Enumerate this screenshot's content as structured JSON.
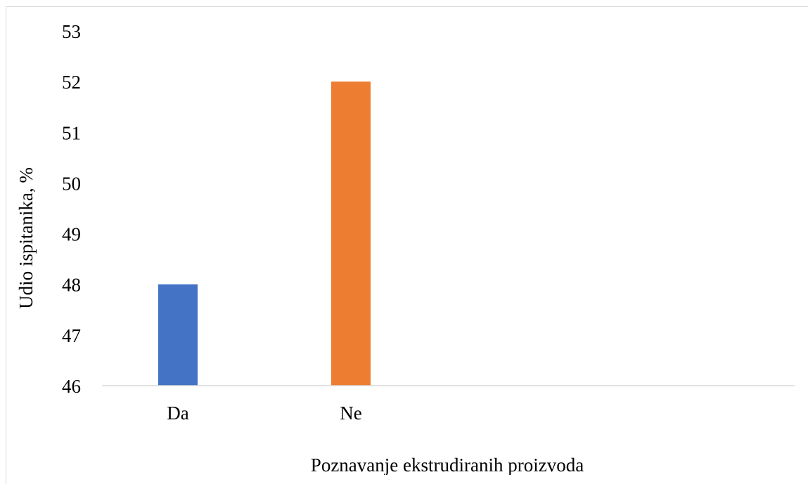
{
  "chart_data": {
    "type": "bar",
    "categories": [
      "Da",
      "Ne"
    ],
    "values": [
      48,
      52
    ],
    "bar_colors": [
      "#4472c4",
      "#ed7d31"
    ],
    "xlabel": "Poznavanje ekstrudiranih proizvoda",
    "ylabel": "Udio ispitanika, %",
    "ylim": [
      46,
      53
    ],
    "yticks": [
      46,
      47,
      48,
      49,
      50,
      51,
      52,
      53
    ],
    "grid": false,
    "legend": "none",
    "axis_color": "#d9d9d9"
  }
}
